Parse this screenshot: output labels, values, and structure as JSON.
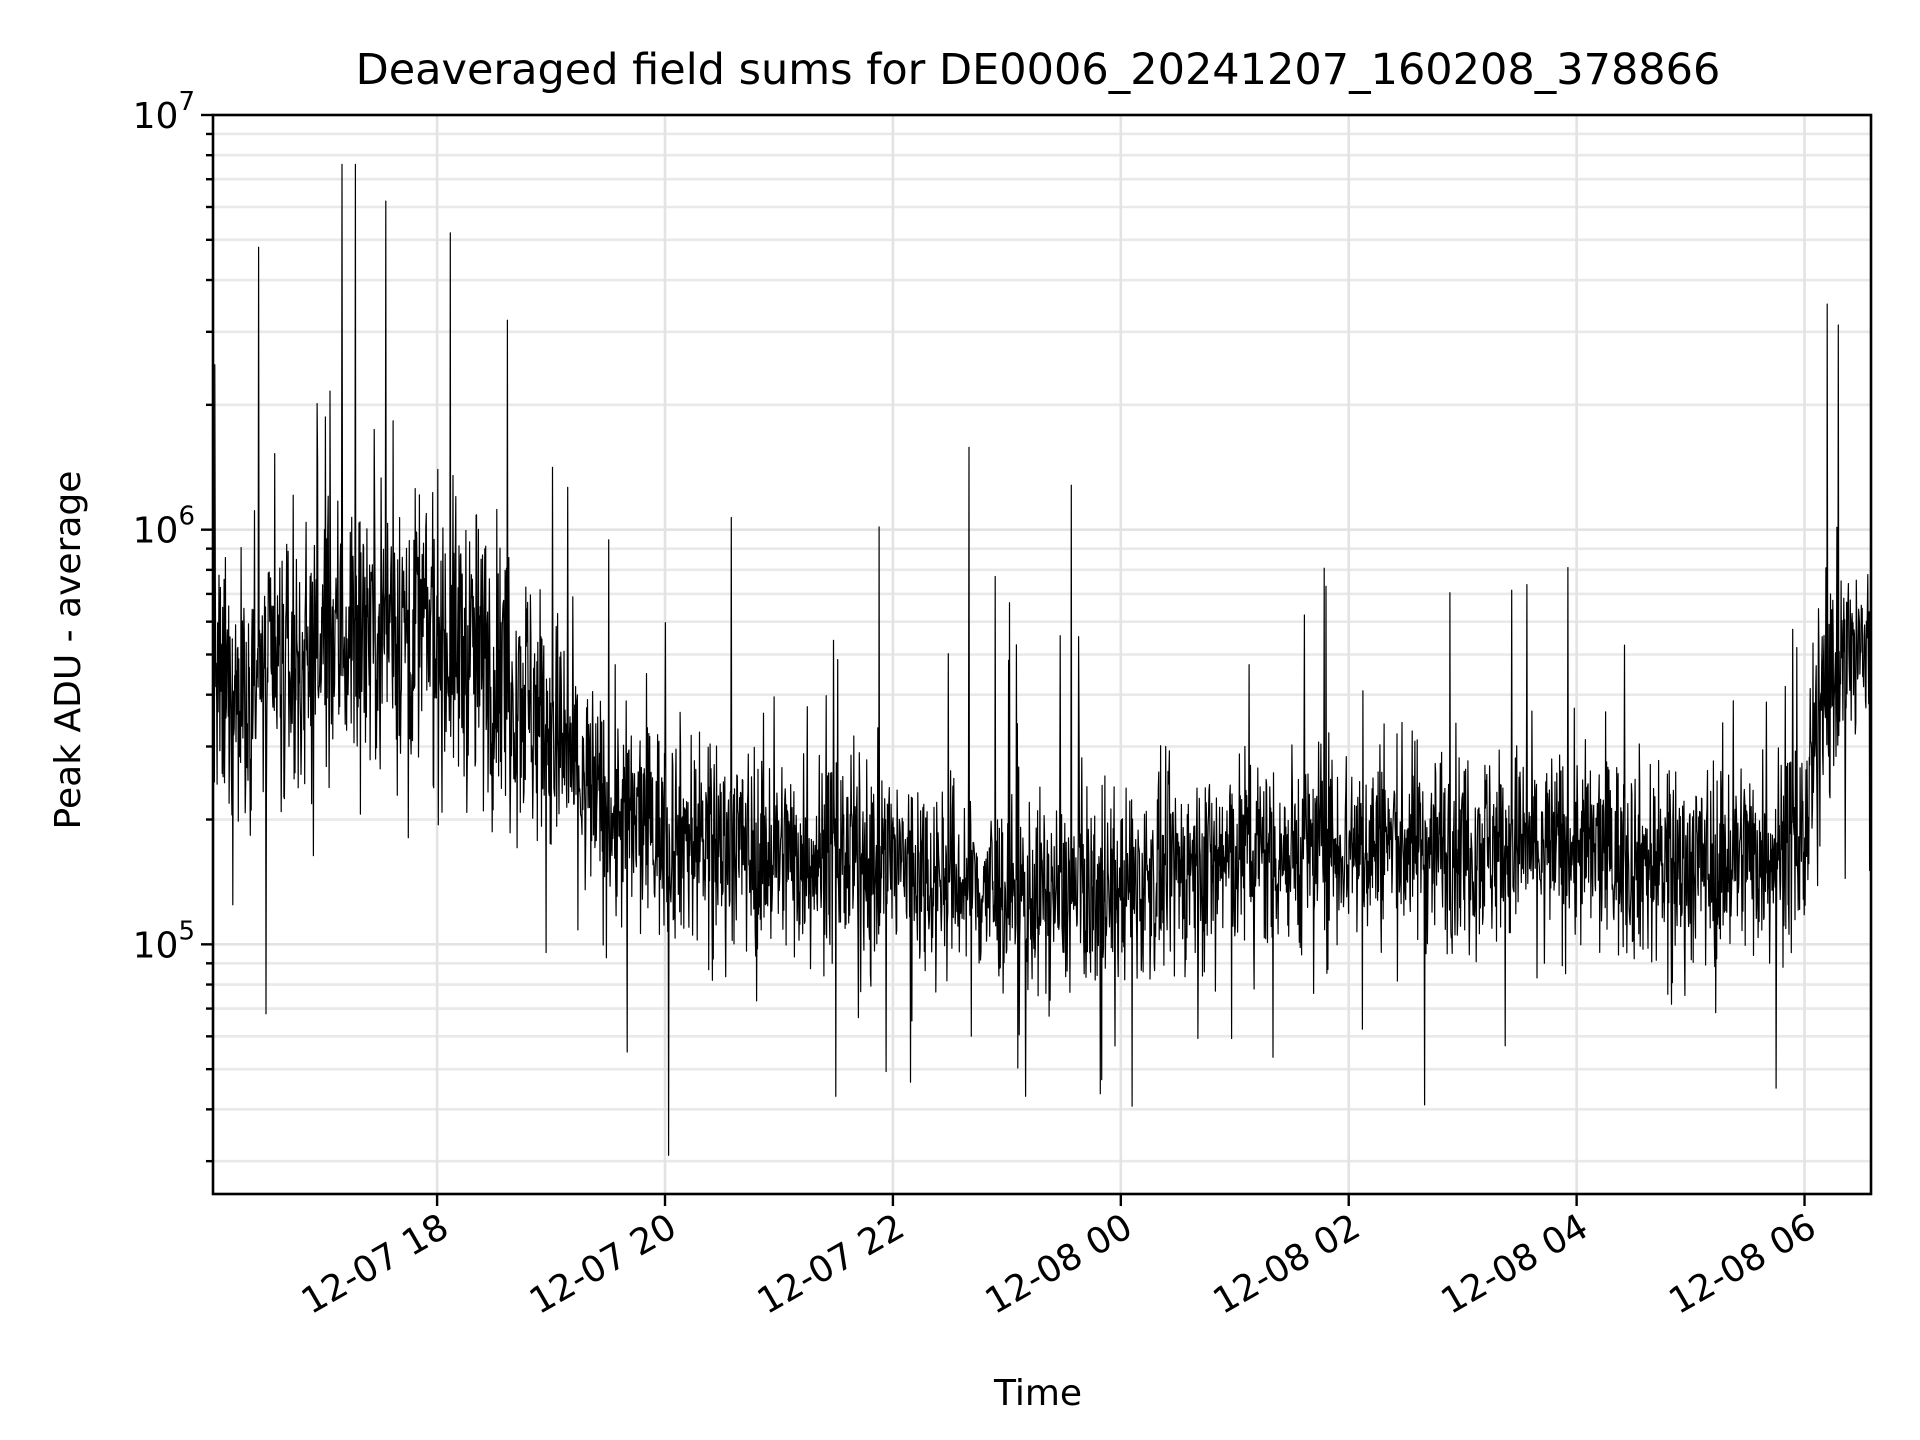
{
  "chart_data": {
    "type": "line",
    "title": "Deaveraged field sums for DE0006_20241207_160208_378866",
    "xlabel": "Time",
    "ylabel": "Peak ADU - average",
    "yscale": "log",
    "ylim": [
      25000,
      10000000
    ],
    "xlim": [
      "2024-12-07 16:02",
      "2024-12-08 06:35"
    ],
    "grid": true,
    "x_ticks": [
      {
        "t": "2024-12-07 18:00",
        "label": "12-07 18"
      },
      {
        "t": "2024-12-07 20:00",
        "label": "12-07 20"
      },
      {
        "t": "2024-12-07 22:00",
        "label": "12-07 22"
      },
      {
        "t": "2024-12-08 00:00",
        "label": "12-08 00"
      },
      {
        "t": "2024-12-08 02:00",
        "label": "12-08 02"
      },
      {
        "t": "2024-12-08 04:00",
        "label": "12-08 04"
      },
      {
        "t": "2024-12-08 06:00",
        "label": "12-08 06"
      }
    ],
    "y_ticks": [
      {
        "value": 100000,
        "base": "10",
        "exp": "5"
      },
      {
        "value": 1000000,
        "base": "10",
        "exp": "6"
      },
      {
        "value": 10000000,
        "base": "10",
        "exp": "7"
      }
    ],
    "series": [
      {
        "color": "#000000",
        "trend": [
          {
            "t": "2024-12-07 16:02",
            "center": 380000,
            "spread": 0.22
          },
          {
            "t": "2024-12-07 16:30",
            "center": 420000,
            "spread": 0.22
          },
          {
            "t": "2024-12-07 17:00",
            "center": 520000,
            "spread": 0.24
          },
          {
            "t": "2024-12-07 17:30",
            "center": 620000,
            "spread": 0.25
          },
          {
            "t": "2024-12-07 18:00",
            "center": 560000,
            "spread": 0.25
          },
          {
            "t": "2024-12-07 18:40",
            "center": 440000,
            "spread": 0.24
          },
          {
            "t": "2024-12-07 19:10",
            "center": 280000,
            "spread": 0.21
          },
          {
            "t": "2024-12-07 19:30",
            "center": 200000,
            "spread": 0.19
          },
          {
            "t": "2024-12-07 20:00",
            "center": 190000,
            "spread": 0.18
          },
          {
            "t": "2024-12-07 21:00",
            "center": 165000,
            "spread": 0.17
          },
          {
            "t": "2024-12-07 22:00",
            "center": 160000,
            "spread": 0.17
          },
          {
            "t": "2024-12-07 23:00",
            "center": 130000,
            "spread": 0.16
          },
          {
            "t": "2024-12-08 00:00",
            "center": 135000,
            "spread": 0.16
          },
          {
            "t": "2024-12-08 01:00",
            "center": 165000,
            "spread": 0.17
          },
          {
            "t": "2024-12-08 02:00",
            "center": 175000,
            "spread": 0.17
          },
          {
            "t": "2024-12-08 03:00",
            "center": 175000,
            "spread": 0.17
          },
          {
            "t": "2024-12-08 04:00",
            "center": 170000,
            "spread": 0.17
          },
          {
            "t": "2024-12-08 05:00",
            "center": 155000,
            "spread": 0.17
          },
          {
            "t": "2024-12-08 06:00",
            "center": 175000,
            "spread": 0.17
          },
          {
            "t": "2024-12-08 06:10",
            "center": 450000,
            "spread": 0.18
          },
          {
            "t": "2024-12-08 06:35",
            "center": 520000,
            "spread": 0.18
          }
        ],
        "peaks": [
          {
            "t": "2024-12-07 16:03",
            "value": 2500000
          },
          {
            "t": "2024-12-07 16:26",
            "value": 4800000
          },
          {
            "t": "2024-12-07 17:10",
            "value": 7600000
          },
          {
            "t": "2024-12-07 17:17",
            "value": 7600000
          },
          {
            "t": "2024-12-07 17:33",
            "value": 6200000
          },
          {
            "t": "2024-12-07 18:07",
            "value": 5200000
          },
          {
            "t": "2024-12-07 18:37",
            "value": 3200000
          },
          {
            "t": "2024-12-07 20:35",
            "value": 1070000
          },
          {
            "t": "2024-12-07 22:40",
            "value": 1580000
          },
          {
            "t": "2024-12-07 23:34",
            "value": 1280000
          },
          {
            "t": "2024-12-08 01:48",
            "value": 730000
          },
          {
            "t": "2024-12-08 06:12",
            "value": 3500000
          }
        ],
        "dips": [
          {
            "t": "2024-12-07 16:30",
            "value": 68000
          },
          {
            "t": "2024-12-07 19:40",
            "value": 55000
          },
          {
            "t": "2024-12-07 20:02",
            "value": 31000
          },
          {
            "t": "2024-12-07 21:30",
            "value": 43000
          },
          {
            "t": "2024-12-07 23:10",
            "value": 43000
          },
          {
            "t": "2024-12-08 02:40",
            "value": 41000
          },
          {
            "t": "2024-12-08 05:45",
            "value": 45000
          }
        ]
      }
    ]
  }
}
